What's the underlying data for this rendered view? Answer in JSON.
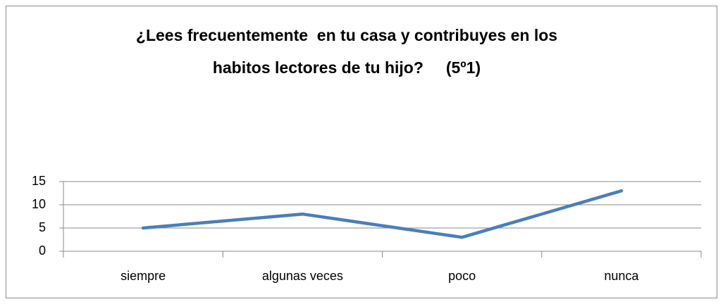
{
  "chart_data": {
    "type": "line",
    "title": [
      "¿Lees frecuentemente  en tu casa y contribuyes en los",
      "habitos lectores de tu hijo?     (5º1)"
    ],
    "categories": [
      "siempre",
      "algunas veces",
      "poco",
      "nunca"
    ],
    "values": [
      5,
      8,
      3,
      13
    ],
    "color": "#4a7ebb",
    "ylim": [
      0,
      15
    ],
    "yticks": [
      0,
      5,
      10,
      15
    ],
    "grid": true
  }
}
